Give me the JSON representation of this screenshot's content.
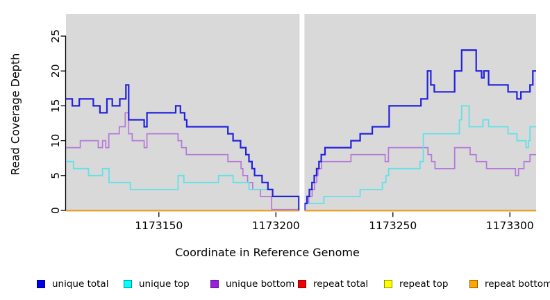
{
  "chart_data": {
    "type": "line",
    "subtype": "step-coverage",
    "title": "",
    "xlabel": "Coordinate in Reference Genome",
    "ylabel": "Read Coverage Depth",
    "xlim": [
      1173110.3,
      1173311.2
    ],
    "ylim": [
      0,
      28
    ],
    "x_ticks": [
      "1173150",
      "1173200",
      "1173250",
      "1173300"
    ],
    "x_tick_values": [
      1173150,
      1173200,
      1173250,
      1173300
    ],
    "y_ticks": [
      "0",
      "5",
      "10",
      "15",
      "20",
      "25"
    ],
    "y_tick_values": [
      0,
      5,
      10,
      15,
      20,
      25
    ],
    "grid": false,
    "panel_color": "#d9d9d9",
    "background_color": "#ffffff",
    "coverage_gap_x": [
      1173210.1,
      1173212.2
    ],
    "legend_position": "bottom",
    "draw_order": [
      "repeat total",
      "repeat top",
      "repeat bottom",
      "unique bottom",
      "unique top",
      "unique total"
    ],
    "series": [
      {
        "name": "unique total",
        "group": "unique",
        "color": "#2222dd",
        "width": 2.2,
        "points": [
          [
            1173110.3,
            16
          ],
          [
            1173113,
            15
          ],
          [
            1173116,
            16
          ],
          [
            1173122,
            15
          ],
          [
            1173124.8,
            14
          ],
          [
            1173127.8,
            16
          ],
          [
            1173130.1,
            15
          ],
          [
            1173133.3,
            16
          ],
          [
            1173135.9,
            18
          ],
          [
            1173137.1,
            13
          ],
          [
            1173143.7,
            12
          ],
          [
            1173144.9,
            14
          ],
          [
            1173157.2,
            15
          ],
          [
            1173159.2,
            14
          ],
          [
            1173161,
            13
          ],
          [
            1173161.9,
            12
          ],
          [
            1173179.5,
            11
          ],
          [
            1173181.7,
            10
          ],
          [
            1173184.9,
            9
          ],
          [
            1173187.2,
            8
          ],
          [
            1173188.5,
            7
          ],
          [
            1173189.8,
            6
          ],
          [
            1173190.9,
            5
          ],
          [
            1173194.1,
            4
          ],
          [
            1173196.6,
            3
          ],
          [
            1173198.6,
            2
          ],
          [
            1173209.8,
            0
          ],
          [
            1173212.3,
            1
          ],
          [
            1173213.3,
            2
          ],
          [
            1173214.3,
            3
          ],
          [
            1173215.4,
            4
          ],
          [
            1173216.4,
            5
          ],
          [
            1173217.4,
            6
          ],
          [
            1173218.4,
            7
          ],
          [
            1173219.4,
            8
          ],
          [
            1173221,
            9
          ],
          [
            1173232.1,
            10
          ],
          [
            1173236,
            11
          ],
          [
            1173241.2,
            12
          ],
          [
            1173248.4,
            15
          ],
          [
            1173262,
            16
          ],
          [
            1173264.8,
            20
          ],
          [
            1173266.2,
            18
          ],
          [
            1173267.7,
            17
          ],
          [
            1173276.4,
            20
          ],
          [
            1173279.4,
            23
          ],
          [
            1173285.6,
            20
          ],
          [
            1173287.9,
            19
          ],
          [
            1173288.9,
            20
          ],
          [
            1173290.9,
            18
          ],
          [
            1173299.2,
            17
          ],
          [
            1173303,
            16
          ],
          [
            1173304.7,
            17
          ],
          [
            1173308.6,
            18
          ],
          [
            1173309.8,
            20
          ]
        ]
      },
      {
        "name": "unique top",
        "group": "unique",
        "color": "#5fe2e8",
        "width": 1.8,
        "points": [
          [
            1173110.3,
            7
          ],
          [
            1173113.5,
            6
          ],
          [
            1173119.9,
            5
          ],
          [
            1173125.9,
            6
          ],
          [
            1173128.7,
            4
          ],
          [
            1173137.8,
            3
          ],
          [
            1173158.2,
            5
          ],
          [
            1173160.7,
            4
          ],
          [
            1173175.5,
            5
          ],
          [
            1173181.7,
            4
          ],
          [
            1173188.5,
            3
          ],
          [
            1173198.6,
            2
          ],
          [
            1173209.8,
            0
          ],
          [
            1173212.3,
            1
          ],
          [
            1173220.5,
            2
          ],
          [
            1173236,
            3
          ],
          [
            1173245.5,
            4
          ],
          [
            1173247,
            5
          ],
          [
            1173248.2,
            6
          ],
          [
            1173261.6,
            7
          ],
          [
            1173263,
            11
          ],
          [
            1173278.4,
            13
          ],
          [
            1173279.4,
            15
          ],
          [
            1173282.6,
            12
          ],
          [
            1173288.5,
            13
          ],
          [
            1173290.9,
            12
          ],
          [
            1173299.2,
            11
          ],
          [
            1173303,
            10
          ],
          [
            1173306.9,
            9
          ],
          [
            1173307.9,
            10
          ],
          [
            1173308.6,
            12
          ]
        ]
      },
      {
        "name": "unique bottom",
        "group": "unique",
        "color": "#b577d9",
        "width": 1.7,
        "points": [
          [
            1173110.3,
            9
          ],
          [
            1173116.4,
            10
          ],
          [
            1173124.1,
            9
          ],
          [
            1173125.9,
            10
          ],
          [
            1173127.3,
            9
          ],
          [
            1173128.6,
            11
          ],
          [
            1173133.1,
            12
          ],
          [
            1173135.6,
            14
          ],
          [
            1173137.1,
            11
          ],
          [
            1173138.6,
            10
          ],
          [
            1173143.7,
            9
          ],
          [
            1173144.9,
            11
          ],
          [
            1173158.2,
            10
          ],
          [
            1173159.7,
            9
          ],
          [
            1173161.7,
            8
          ],
          [
            1173179.5,
            7
          ],
          [
            1173185.1,
            6
          ],
          [
            1173185.9,
            5
          ],
          [
            1173187.9,
            4
          ],
          [
            1173190.1,
            3
          ],
          [
            1173193.4,
            2
          ],
          [
            1173198.2,
            0
          ],
          [
            1173212.5,
            1
          ],
          [
            1173214,
            2
          ],
          [
            1173215.5,
            3
          ],
          [
            1173216.5,
            4
          ],
          [
            1173217.5,
            5
          ],
          [
            1173218,
            6
          ],
          [
            1173219.5,
            7
          ],
          [
            1173232.1,
            8
          ],
          [
            1173246.7,
            7
          ],
          [
            1173248.1,
            9
          ],
          [
            1173265,
            8
          ],
          [
            1173266.5,
            7
          ],
          [
            1173268,
            6
          ],
          [
            1173276.4,
            9
          ],
          [
            1173283,
            8
          ],
          [
            1173285.6,
            7
          ],
          [
            1173290,
            6
          ],
          [
            1173302.4,
            5
          ],
          [
            1173303.7,
            6
          ],
          [
            1173306,
            7
          ],
          [
            1173308.6,
            8
          ]
        ]
      },
      {
        "name": "repeat total",
        "group": "repeat",
        "color": "#dd2222",
        "width": 1.6,
        "points": [
          [
            1173110.3,
            0
          ]
        ]
      },
      {
        "name": "repeat top",
        "group": "repeat",
        "color": "#ffee00",
        "width": 1.6,
        "points": [
          [
            1173110.3,
            0
          ]
        ]
      },
      {
        "name": "repeat bottom",
        "group": "repeat",
        "color": "#ff9f00",
        "width": 2,
        "points": [
          [
            1173110.3,
            0
          ]
        ]
      }
    ],
    "legend": [
      {
        "label": "unique total",
        "swatch_fill": "#0000e6",
        "swatch_border": "#00008b"
      },
      {
        "label": "unique top",
        "swatch_fill": "#00ffff",
        "swatch_border": "#008b8b"
      },
      {
        "label": "unique bottom",
        "swatch_fill": "#9a1fd8",
        "swatch_border": "#551a8b"
      },
      {
        "label": "repeat total",
        "swatch_fill": "#ee0000",
        "swatch_border": "#8b0000"
      },
      {
        "label": "repeat top",
        "swatch_fill": "#ffff00",
        "swatch_border": "#8b8b00"
      },
      {
        "label": "repeat bottom",
        "swatch_fill": "#ffa500",
        "swatch_border": "#8b5a00"
      }
    ]
  }
}
